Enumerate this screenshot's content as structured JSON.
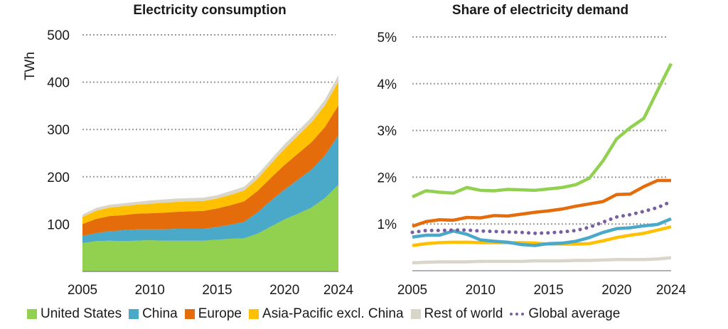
{
  "chart_data": [
    {
      "type": "area",
      "stacked": true,
      "title": "Electricity consumption",
      "ylabel": "TWh",
      "xlabel": "",
      "ylim": [
        0,
        500
      ],
      "yticks": [
        100,
        200,
        300,
        400,
        500
      ],
      "xticks": [
        2005,
        2010,
        2015,
        2020,
        2024
      ],
      "grid": "horizontal dotted",
      "x": [
        2005,
        2006,
        2007,
        2008,
        2009,
        2010,
        2011,
        2012,
        2013,
        2014,
        2015,
        2016,
        2017,
        2018,
        2019,
        2020,
        2021,
        2022,
        2023,
        2024
      ],
      "series": [
        {
          "name": "United States",
          "color": "#92d050",
          "values": [
            60,
            64,
            65,
            64,
            65,
            66,
            65,
            65,
            65,
            65,
            67,
            69,
            70,
            80,
            95,
            110,
            122,
            135,
            155,
            183
          ]
        },
        {
          "name": "China",
          "color": "#4aa9c8",
          "values": [
            15,
            17,
            20,
            23,
            24,
            23,
            24,
            25,
            25,
            25,
            27,
            30,
            35,
            45,
            55,
            63,
            72,
            80,
            90,
            105
          ]
        },
        {
          "name": "Europe",
          "color": "#e46c0a",
          "values": [
            25,
            30,
            32,
            32,
            33,
            34,
            35,
            36,
            37,
            38,
            39,
            41,
            43,
            45,
            48,
            52,
            55,
            58,
            60,
            63
          ]
        },
        {
          "name": "Asia-Pacific excl. China",
          "color": "#ffc000",
          "values": [
            15,
            17,
            18,
            19,
            19,
            20,
            21,
            21,
            21,
            21,
            21,
            22,
            23,
            26,
            30,
            34,
            38,
            42,
            46,
            50
          ]
        },
        {
          "name": "Rest of world",
          "color": "#d9d5c8",
          "values": [
            5,
            6,
            6,
            6,
            6,
            7,
            7,
            7,
            7,
            7,
            7,
            8,
            8,
            9,
            9,
            10,
            10,
            11,
            12,
            14
          ]
        }
      ]
    },
    {
      "type": "line",
      "title": "Share of electricity demand",
      "ylabel": "",
      "xlabel": "",
      "ylim": [
        0,
        5
      ],
      "yticks": [
        "1%",
        "2%",
        "3%",
        "4%",
        "5%"
      ],
      "xticks": [
        2005,
        2010,
        2015,
        2020,
        2024
      ],
      "grid": "horizontal dotted",
      "x": [
        2005,
        2006,
        2007,
        2008,
        2009,
        2010,
        2011,
        2012,
        2013,
        2014,
        2015,
        2016,
        2017,
        2018,
        2019,
        2020,
        2021,
        2022,
        2023,
        2024
      ],
      "series": [
        {
          "name": "United States",
          "color": "#92d050",
          "style": "solid",
          "values": [
            1.58,
            1.71,
            1.68,
            1.66,
            1.78,
            1.72,
            1.71,
            1.74,
            1.73,
            1.72,
            1.75,
            1.78,
            1.84,
            1.98,
            2.35,
            2.82,
            3.06,
            3.26,
            3.85,
            4.43
          ]
        },
        {
          "name": "China",
          "color": "#4aa9c8",
          "style": "solid",
          "values": [
            0.72,
            0.76,
            0.76,
            0.85,
            0.78,
            0.66,
            0.63,
            0.61,
            0.56,
            0.54,
            0.58,
            0.59,
            0.63,
            0.71,
            0.82,
            0.9,
            0.92,
            0.96,
            0.99,
            1.11
          ]
        },
        {
          "name": "Europe",
          "color": "#e46c0a",
          "style": "solid",
          "values": [
            0.95,
            1.05,
            1.09,
            1.08,
            1.14,
            1.13,
            1.18,
            1.17,
            1.21,
            1.25,
            1.28,
            1.32,
            1.38,
            1.43,
            1.48,
            1.63,
            1.64,
            1.8,
            1.93,
            1.93
          ]
        },
        {
          "name": "Asia-Pacific excl. China",
          "color": "#ffc000",
          "style": "solid",
          "values": [
            0.54,
            0.58,
            0.6,
            0.61,
            0.61,
            0.6,
            0.6,
            0.6,
            0.6,
            0.59,
            0.57,
            0.57,
            0.57,
            0.58,
            0.64,
            0.71,
            0.76,
            0.8,
            0.87,
            0.94
          ]
        },
        {
          "name": "Rest of world",
          "color": "#d9d5c8",
          "style": "solid",
          "values": [
            0.17,
            0.18,
            0.19,
            0.19,
            0.19,
            0.2,
            0.2,
            0.2,
            0.2,
            0.21,
            0.21,
            0.21,
            0.22,
            0.22,
            0.23,
            0.24,
            0.24,
            0.24,
            0.25,
            0.28
          ]
        },
        {
          "name": "Global average",
          "color": "#7a5fa0",
          "style": "dotted",
          "values": [
            0.82,
            0.86,
            0.86,
            0.87,
            0.87,
            0.85,
            0.84,
            0.83,
            0.82,
            0.8,
            0.81,
            0.83,
            0.86,
            0.93,
            1.04,
            1.15,
            1.2,
            1.27,
            1.35,
            1.48
          ]
        }
      ]
    }
  ],
  "legend": [
    {
      "label": "United States",
      "color": "#92d050",
      "kind": "square"
    },
    {
      "label": "China",
      "color": "#4aa9c8",
      "kind": "square"
    },
    {
      "label": "Europe",
      "color": "#e46c0a",
      "kind": "square"
    },
    {
      "label": "Asia-Pacific excl. China",
      "color": "#ffc000",
      "kind": "square"
    },
    {
      "label": "Rest of world",
      "color": "#d9d5c8",
      "kind": "square"
    },
    {
      "label": "Global average",
      "color": "#7a5fa0",
      "kind": "dots"
    }
  ],
  "grid_color": "#999999"
}
